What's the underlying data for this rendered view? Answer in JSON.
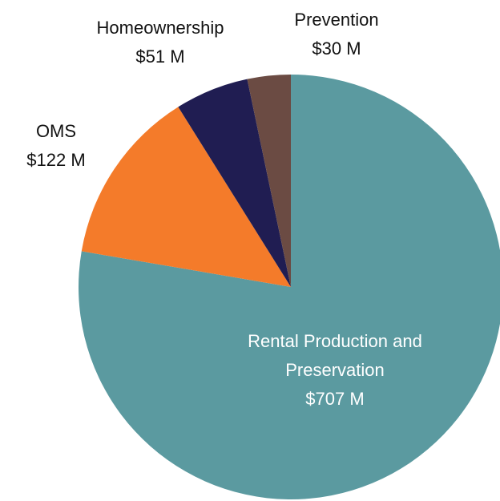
{
  "chart_data": {
    "type": "pie",
    "categories": [
      "Rental Production and Preservation",
      "OMS",
      "Homeownership",
      "Prevention"
    ],
    "values": [
      707,
      122,
      51,
      30
    ],
    "value_labels": [
      "$707 M",
      "$122 M",
      "$51 M",
      "$30 M"
    ],
    "colors": [
      "#5b9aa0",
      "#f47b2a",
      "#201d52",
      "#6b4b43"
    ]
  }
}
